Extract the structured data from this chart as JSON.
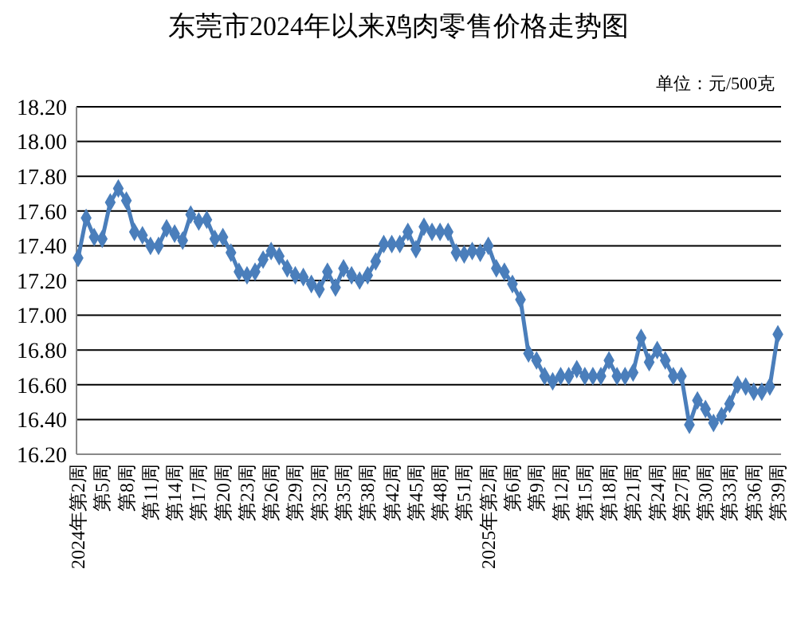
{
  "chart_data": {
    "type": "line",
    "title": "东莞市2024年以来鸡肉零售价格走势图",
    "annotations": [
      "单位：元/500克"
    ],
    "categories": [
      "2024年第2周",
      null,
      null,
      "第5周",
      null,
      null,
      "第8周",
      null,
      null,
      "第11周",
      null,
      null,
      "第14周",
      null,
      null,
      "第17周",
      null,
      null,
      "第20周",
      null,
      null,
      "第23周",
      null,
      null,
      "第26周",
      null,
      null,
      "第29周",
      null,
      null,
      "第32周",
      null,
      null,
      "第35周",
      null,
      null,
      "第38周",
      null,
      null,
      "第42周",
      null,
      null,
      "第45周",
      null,
      null,
      "第48周",
      null,
      null,
      "第51周",
      null,
      null,
      "2025年第2周",
      null,
      null,
      "第6周",
      null,
      null,
      "第9周",
      null,
      null,
      "第12周",
      null,
      null,
      "第15周",
      null,
      null,
      "第18周",
      null,
      null,
      "第21周",
      null,
      null,
      "第24周",
      null,
      null,
      "第27周",
      null,
      null,
      "第30周",
      null,
      null,
      "第33周",
      null,
      null,
      "第36周",
      null,
      null,
      "第39周"
    ],
    "series": [
      {
        "color": "#4a7ebb",
        "values": [
          17.33,
          17.56,
          17.45,
          17.44,
          17.65,
          17.73,
          17.66,
          17.48,
          17.46,
          17.4,
          17.4,
          17.5,
          17.47,
          17.43,
          17.58,
          17.54,
          17.55,
          17.44,
          17.45,
          17.36,
          17.25,
          17.23,
          17.25,
          17.32,
          17.37,
          17.34,
          17.27,
          17.23,
          17.22,
          17.18,
          17.15,
          17.25,
          17.16,
          17.27,
          17.23,
          17.2,
          17.23,
          17.31,
          17.41,
          17.41,
          17.41,
          17.48,
          17.38,
          17.51,
          17.48,
          17.48,
          17.48,
          17.36,
          17.35,
          17.37,
          17.36,
          17.4,
          17.27,
          17.25,
          17.18,
          17.09,
          16.78,
          16.74,
          16.65,
          16.62,
          16.65,
          16.65,
          16.69,
          16.65,
          16.65,
          16.65,
          16.74,
          16.65,
          16.65,
          16.67,
          16.87,
          16.73,
          16.8,
          16.74,
          16.65,
          16.65,
          16.37,
          16.51,
          16.46,
          16.38,
          16.42,
          16.49,
          16.6,
          16.59,
          16.56,
          16.56,
          16.59,
          16.89
        ]
      }
    ],
    "ylim": [
      16.2,
      18.2
    ],
    "yticks": [
      {
        "value": 16.2,
        "label": "16.20"
      },
      {
        "value": 16.4,
        "label": "16.40"
      },
      {
        "value": 16.6,
        "label": "16.60"
      },
      {
        "value": 16.8,
        "label": "16.80"
      },
      {
        "value": 17.0,
        "label": "17.00"
      },
      {
        "value": 17.2,
        "label": "17.20"
      },
      {
        "value": 17.4,
        "label": "17.40"
      },
      {
        "value": 17.6,
        "label": "17.60"
      },
      {
        "value": 17.8,
        "label": "17.80"
      },
      {
        "value": 18.0,
        "label": "18.00"
      },
      {
        "value": 18.2,
        "label": "18.20"
      }
    ],
    "grid": "y",
    "marker": "diamond",
    "line_style": "solid"
  }
}
